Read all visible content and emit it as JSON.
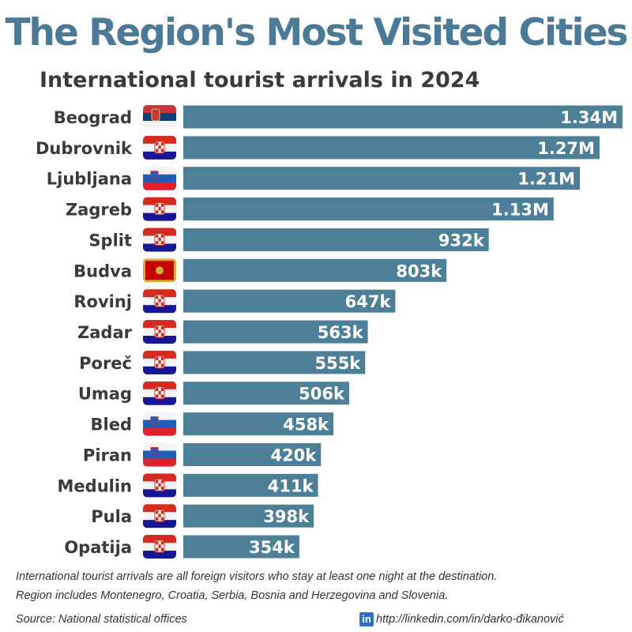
{
  "chart_data": {
    "type": "bar",
    "orientation": "horizontal",
    "title": "The Region's Most Visited Cities",
    "subtitle": "International tourist arrivals in 2024",
    "categories": [
      "Beograd",
      "Dubrovnik",
      "Ljubljana",
      "Zagreb",
      "Split",
      "Budva",
      "Rovinj",
      "Zadar",
      "Poreč",
      "Umag",
      "Bled",
      "Piran",
      "Medulin",
      "Pula",
      "Opatija"
    ],
    "countries": [
      "serbia",
      "croatia",
      "slovenia",
      "croatia",
      "croatia",
      "montenegro",
      "croatia",
      "croatia",
      "croatia",
      "croatia",
      "slovenia",
      "slovenia",
      "croatia",
      "croatia",
      "croatia"
    ],
    "values": [
      1340000,
      1270000,
      1210000,
      1130000,
      932000,
      803000,
      647000,
      563000,
      555000,
      506000,
      458000,
      420000,
      411000,
      398000,
      354000
    ],
    "labels": [
      "1.34M",
      "1.27M",
      "1.21M",
      "1.13M",
      "932k",
      "803k",
      "647k",
      "563k",
      "555k",
      "506k",
      "458k",
      "420k",
      "411k",
      "398k",
      "354k"
    ],
    "xlim": [
      0,
      1340000
    ],
    "bar_color": "#4e7f99"
  },
  "footer": {
    "note1": "International tourist arrivals are all foreign visitors who stay at least one night at the destination.",
    "note2": "Region includes Montenegro, Croatia, Serbia, Bosnia and Herzegovina and Slovenia.",
    "source": "Source: National statistical offices",
    "linkedin_icon": "in",
    "link": "http://linkedin.com/in/darko-đikanović"
  }
}
